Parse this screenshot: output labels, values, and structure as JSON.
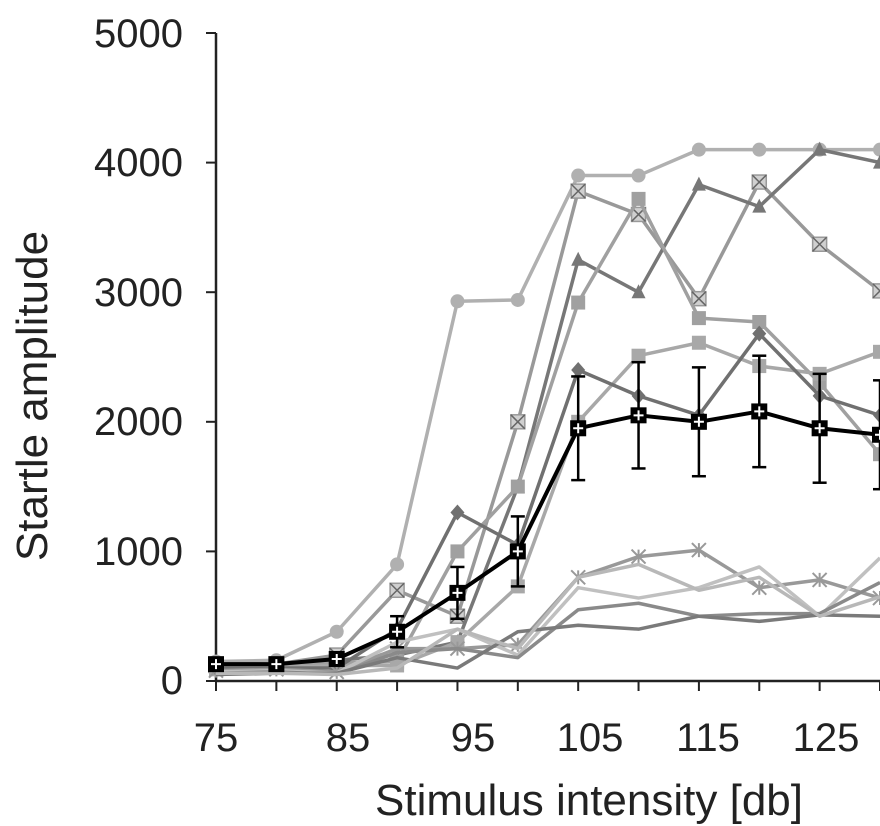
{
  "chart_data": {
    "type": "line",
    "title": "",
    "xlabel": "Stimulus intensity [db]",
    "ylabel": "Startle amplitude",
    "x": [
      75,
      80,
      85,
      90,
      95,
      100,
      105,
      110,
      115,
      120,
      125,
      130
    ],
    "xticks": [
      "75",
      "85",
      "95",
      "105",
      "115",
      "125"
    ],
    "yticks": [
      "0",
      "1000",
      "2000",
      "3000",
      "4000",
      "5000"
    ],
    "xlim": [
      75,
      130
    ],
    "ylim": [
      0,
      5000
    ],
    "grid": false,
    "legend": "none",
    "series": [
      {
        "color": "#b0b0b0",
        "marker": "circle",
        "values": [
          150,
          160,
          380,
          900,
          2930,
          2940,
          3900,
          3900,
          4100,
          4100,
          4100,
          4100
        ]
      },
      {
        "color": "#999999",
        "marker": "x-box",
        "values": [
          120,
          130,
          200,
          700,
          500,
          2000,
          3780,
          3600,
          2950,
          3850,
          3370,
          3010
        ]
      },
      {
        "color": "#777777",
        "marker": "triangle",
        "values": [
          110,
          120,
          160,
          200,
          300,
          1500,
          3250,
          3000,
          3830,
          3660,
          4100,
          4000
        ]
      },
      {
        "color": "#a0a0a0",
        "marker": "square",
        "values": [
          100,
          110,
          140,
          150,
          1000,
          1500,
          2920,
          3720,
          2800,
          2770,
          2300,
          1750
        ]
      },
      {
        "color": "#a8a8a8",
        "marker": "square",
        "values": [
          90,
          100,
          120,
          120,
          300,
          730,
          2000,
          2510,
          2610,
          2430,
          2370,
          2540
        ]
      },
      {
        "color": "#707070",
        "marker": "diamond",
        "values": [
          100,
          100,
          100,
          400,
          1300,
          1050,
          2400,
          2200,
          2050,
          2680,
          2200,
          2050
        ]
      },
      {
        "color": "#000000",
        "marker": "mean-square",
        "values": [
          130,
          130,
          170,
          380,
          680,
          1000,
          1950,
          2050,
          2000,
          2080,
          1950,
          1900
        ],
        "errors": [
          0,
          0,
          0,
          120,
          200,
          270,
          400,
          410,
          420,
          430,
          420,
          420
        ]
      },
      {
        "color": "#999999",
        "marker": "star",
        "values": [
          80,
          90,
          70,
          250,
          250,
          280,
          800,
          960,
          1010,
          720,
          780,
          640
        ]
      },
      {
        "color": "#c0c0c0",
        "marker": "none",
        "values": [
          70,
          80,
          60,
          300,
          400,
          200,
          720,
          640,
          720,
          880,
          500,
          950
        ]
      },
      {
        "color": "#8a8a8a",
        "marker": "none",
        "values": [
          60,
          70,
          50,
          220,
          250,
          180,
          550,
          600,
          500,
          520,
          520,
          760
        ]
      },
      {
        "color": "#7a7a7a",
        "marker": "none",
        "values": [
          50,
          60,
          60,
          180,
          100,
          380,
          430,
          400,
          500,
          460,
          510,
          500
        ]
      },
      {
        "color": "#b8b8b8",
        "marker": "none",
        "values": [
          60,
          60,
          50,
          100,
          400,
          250,
          800,
          900,
          700,
          800,
          500,
          650
        ]
      }
    ]
  }
}
